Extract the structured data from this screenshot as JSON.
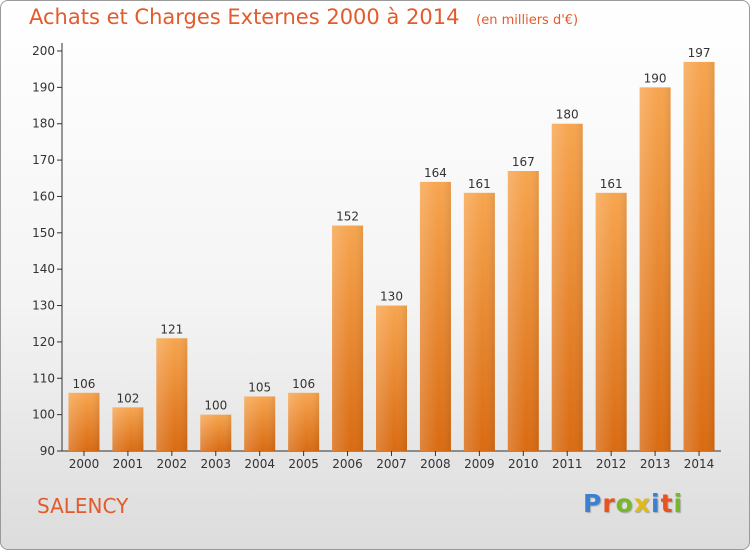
{
  "title": "Achats et Charges Externes 2000 à 2014",
  "unit_note": "(en milliers d'€)",
  "commune": "SALENCY",
  "logo": {
    "text": "Proxiti",
    "letter_colors": [
      "#3b7fd1",
      "#e8531f",
      "#77b82a",
      "#e0b91a",
      "#3b7fd1",
      "#e8531f",
      "#77b82a"
    ]
  },
  "colors": {
    "title": "#e35b2d",
    "bar_light": "#f7a54f",
    "bar_dark": "#d96b12",
    "axis": "#333333"
  },
  "chart_data": {
    "type": "bar",
    "title": "Achats et Charges Externes 2000 à 2014",
    "categories": [
      "2000",
      "2001",
      "2002",
      "2003",
      "2004",
      "2005",
      "2006",
      "2007",
      "2008",
      "2009",
      "2010",
      "2011",
      "2012",
      "2013",
      "2014"
    ],
    "values": [
      106,
      102,
      121,
      100,
      105,
      106,
      152,
      130,
      164,
      161,
      167,
      180,
      161,
      190,
      197
    ],
    "ylim": [
      90,
      200
    ],
    "yticks": [
      90,
      100,
      110,
      120,
      130,
      140,
      150,
      160,
      170,
      180,
      190,
      200
    ],
    "grid": false,
    "xlabel": "",
    "ylabel": ""
  }
}
